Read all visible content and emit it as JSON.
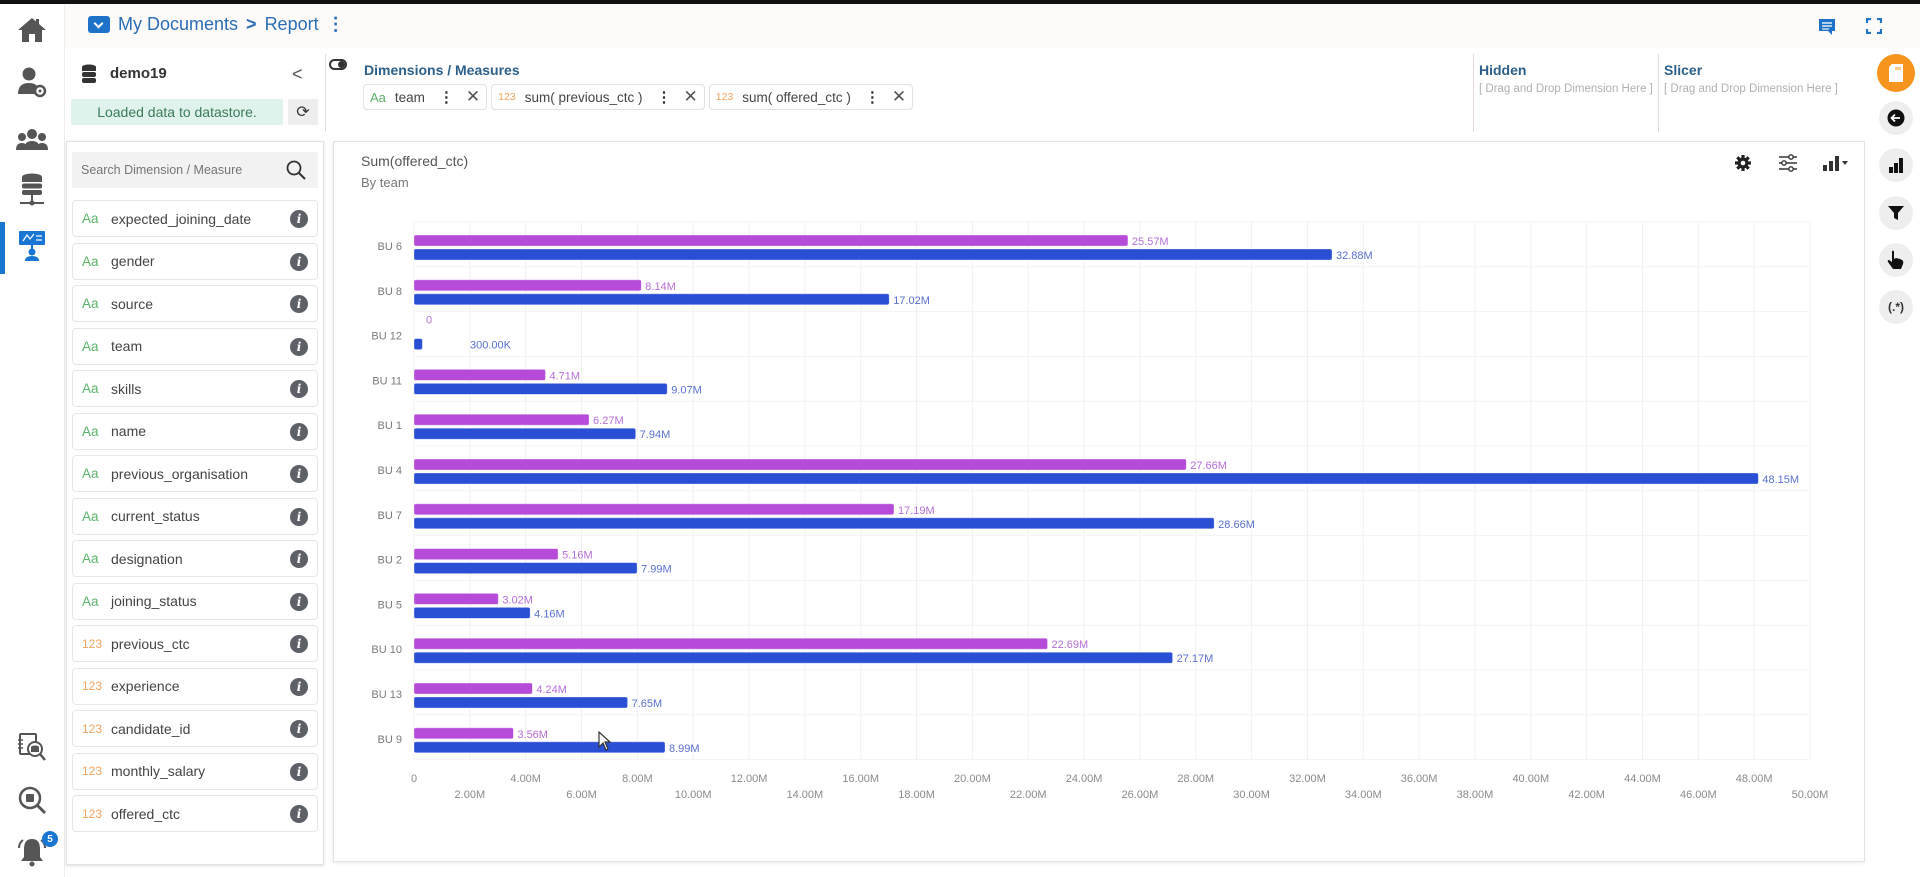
{
  "header": {
    "breadcrumb": [
      "My Documents",
      "Report"
    ],
    "separator": ">",
    "kebab": "⋮"
  },
  "left_nav": {
    "items": [
      "home-icon",
      "user-settings-icon",
      "users-group-icon",
      "data-center-icon",
      "dashboard-designer-icon",
      "data-search-icon",
      "query-search-icon",
      "notification-bell-icon"
    ],
    "notification_count": "5",
    "active_color": "#1976d2"
  },
  "dataset": {
    "name": "demo19",
    "status": "Loaded data to datastore.",
    "collapse": "<",
    "refresh": "⟳"
  },
  "field_panel": {
    "search_placeholder": "Search Dimension / Measure",
    "fields": [
      {
        "type": "Aa",
        "name": "expected_joining_date"
      },
      {
        "type": "Aa",
        "name": "gender"
      },
      {
        "type": "Aa",
        "name": "source"
      },
      {
        "type": "Aa",
        "name": "team"
      },
      {
        "type": "Aa",
        "name": "skills"
      },
      {
        "type": "Aa",
        "name": "name"
      },
      {
        "type": "Aa",
        "name": "previous_organisation"
      },
      {
        "type": "Aa",
        "name": "current_status"
      },
      {
        "type": "Aa",
        "name": "designation"
      },
      {
        "type": "Aa",
        "name": "joining_status"
      },
      {
        "type": "123",
        "name": "previous_ctc"
      },
      {
        "type": "123",
        "name": "experience"
      },
      {
        "type": "123",
        "name": "candidate_id"
      },
      {
        "type": "123",
        "name": "monthly_salary"
      },
      {
        "type": "123",
        "name": "offered_ctc"
      }
    ],
    "info_glyph": "i"
  },
  "dimensions_measures": {
    "title": "Dimensions / Measures",
    "chips": [
      {
        "type": "Aa",
        "label": "team"
      },
      {
        "type": "123",
        "label": "sum( previous_ctc )"
      },
      {
        "type": "123",
        "label": "sum( offered_ctc )"
      }
    ],
    "chip_menu": "⋮",
    "chip_close": "✕"
  },
  "hidden_zone": {
    "title": "Hidden",
    "hint": "[ Drag and Drop Dimension Here ]"
  },
  "slicer_zone": {
    "title": "Slicer",
    "hint": "[ Drag and Drop Dimension Here ]"
  },
  "right_toolbar": {
    "items": [
      "properties-icon",
      "back-icon",
      "chart-type-icon",
      "filter-icon",
      "interaction-icon",
      "regex-icon"
    ],
    "regex_label": "(.*)",
    "active_color": "#f7941d"
  },
  "chart_tools": [
    "settings-icon",
    "adjust-icon",
    "chart-switch-icon"
  ],
  "chart_data": {
    "type": "bar",
    "orientation": "horizontal",
    "title": "Sum(offered_ctc)",
    "subtitle": "By team",
    "categories": [
      "BU 6",
      "BU 8",
      "BU 12",
      "BU 11",
      "BU 1",
      "BU 4",
      "BU 7",
      "BU 2",
      "BU 5",
      "BU 10",
      "BU 13",
      "BU 9"
    ],
    "series": [
      {
        "name": "sum( previous_ctc )",
        "color": "#b54bd8",
        "values": [
          25570000,
          8140000,
          0,
          4710000,
          6270000,
          27660000,
          17190000,
          5160000,
          3020000,
          22690000,
          4240000,
          3560000
        ],
        "labels": [
          "25.57M",
          "8.14M",
          "0",
          "4.71M",
          "6.27M",
          "27.66M",
          "17.19M",
          "5.16M",
          "3.02M",
          "22.69M",
          "4.24M",
          "3.56M"
        ]
      },
      {
        "name": "sum( offered_ctc )",
        "color": "#2a4fd4",
        "values": [
          32880000,
          17020000,
          300000,
          9070000,
          7940000,
          48150000,
          28660000,
          7990000,
          4160000,
          27170000,
          7650000,
          8990000
        ],
        "labels": [
          "32.88M",
          "17.02M",
          "300.00K",
          "9.07M",
          "7.94M",
          "48.15M",
          "28.66M",
          "7.99M",
          "4.16M",
          "27.17M",
          "7.65M",
          "8.99M"
        ]
      }
    ],
    "xlim": [
      0,
      50000000
    ],
    "xticks": [
      0,
      2000000,
      4000000,
      6000000,
      8000000,
      10000000,
      12000000,
      14000000,
      16000000,
      18000000,
      20000000,
      22000000,
      24000000,
      26000000,
      28000000,
      30000000,
      32000000,
      34000000,
      36000000,
      38000000,
      40000000,
      42000000,
      44000000,
      46000000,
      48000000,
      50000000
    ],
    "xtick_labels": [
      "0",
      "2.00M",
      "4.00M",
      "6.00M",
      "8.00M",
      "10.00M",
      "12.00M",
      "14.00M",
      "16.00M",
      "18.00M",
      "20.00M",
      "22.00M",
      "24.00M",
      "26.00M",
      "28.00M",
      "30.00M",
      "32.00M",
      "34.00M",
      "36.00M",
      "38.00M",
      "40.00M",
      "42.00M",
      "44.00M",
      "46.00M",
      "48.00M",
      "50.00M"
    ],
    "grid": true,
    "legend": "none"
  }
}
